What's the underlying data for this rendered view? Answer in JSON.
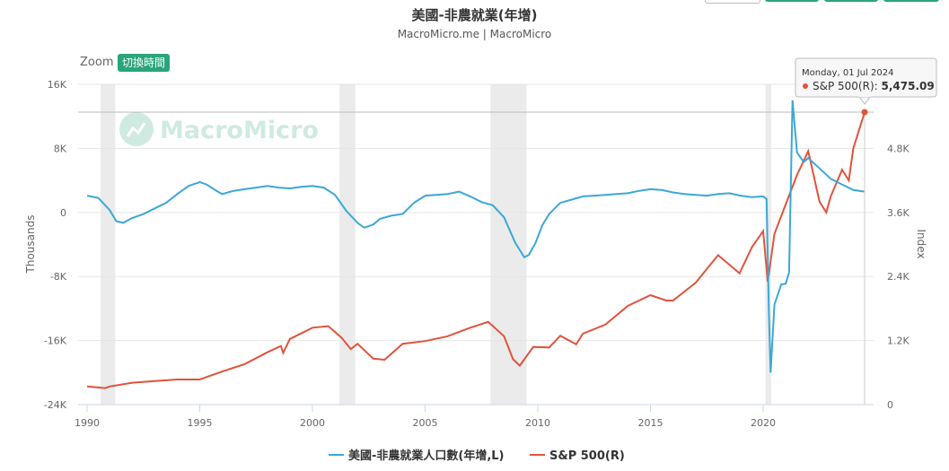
{
  "title": "美國-非農就業(年增)",
  "subtitle": "MacroMicro.me | MacroMicro",
  "zoom_label": "Zoom",
  "zoom_button": "切換時間",
  "watermark": "MacroMicro",
  "tooltip": {
    "date": "Monday, 01 Jul 2024",
    "series": "S&P 500(R): ",
    "value": "5,475.09"
  },
  "colors": {
    "payrolls": "#3aa8d6",
    "sp500": "#e0533c",
    "recession": "#ebebeb",
    "watermark": "#2aa57a",
    "button": "#2aa57a"
  },
  "chart_data": {
    "type": "line",
    "x_range": [
      "1990-01",
      "2024-12"
    ],
    "x_ticks": [
      "1990",
      "1995",
      "2000",
      "2005",
      "2010",
      "2015",
      "2020"
    ],
    "left_axis": {
      "label": "Thousands",
      "ylim": [
        -24000,
        16000
      ],
      "ticks": [
        {
          "v": 16000,
          "t": "16K"
        },
        {
          "v": 8000,
          "t": "8K"
        },
        {
          "v": 0,
          "t": "0"
        },
        {
          "v": -8000,
          "t": "-8K"
        },
        {
          "v": -16000,
          "t": "-16K"
        },
        {
          "v": -24000,
          "t": "-24K"
        }
      ]
    },
    "right_axis": {
      "label": "Index",
      "ylim": [
        0,
        6000
      ],
      "ticks": [
        {
          "v": 4800,
          "t": "4.8K"
        },
        {
          "v": 3600,
          "t": "3.6K"
        },
        {
          "v": 2400,
          "t": "2.4K"
        },
        {
          "v": 1200,
          "t": "1.2K"
        },
        {
          "v": 0,
          "t": "0"
        }
      ]
    },
    "recession_periods": [
      {
        "start": 1990.6,
        "end": 1991.25
      },
      {
        "start": 2001.2,
        "end": 2001.9
      },
      {
        "start": 2007.9,
        "end": 2009.5
      },
      {
        "start": 2020.1,
        "end": 2020.35
      }
    ],
    "series": [
      {
        "name": "美國-非農就業人口數(年增,L)",
        "axis": "left",
        "points": [
          [
            1990.0,
            2100
          ],
          [
            1990.5,
            1800
          ],
          [
            1991.0,
            300
          ],
          [
            1991.3,
            -1100
          ],
          [
            1991.6,
            -1300
          ],
          [
            1992.0,
            -700
          ],
          [
            1992.5,
            -200
          ],
          [
            1993.0,
            500
          ],
          [
            1993.5,
            1200
          ],
          [
            1994.0,
            2300
          ],
          [
            1994.5,
            3300
          ],
          [
            1995.0,
            3800
          ],
          [
            1995.3,
            3500
          ],
          [
            1995.8,
            2600
          ],
          [
            1996.0,
            2300
          ],
          [
            1996.5,
            2700
          ],
          [
            1997.0,
            2900
          ],
          [
            1997.5,
            3100
          ],
          [
            1998.0,
            3300
          ],
          [
            1998.5,
            3100
          ],
          [
            1999.0,
            3000
          ],
          [
            1999.5,
            3200
          ],
          [
            2000.0,
            3300
          ],
          [
            2000.5,
            3100
          ],
          [
            2001.0,
            2200
          ],
          [
            2001.5,
            200
          ],
          [
            2002.0,
            -1300
          ],
          [
            2002.3,
            -1900
          ],
          [
            2002.7,
            -1500
          ],
          [
            2003.0,
            -800
          ],
          [
            2003.5,
            -400
          ],
          [
            2004.0,
            -200
          ],
          [
            2004.5,
            1200
          ],
          [
            2005.0,
            2100
          ],
          [
            2005.5,
            2200
          ],
          [
            2006.0,
            2300
          ],
          [
            2006.5,
            2600
          ],
          [
            2007.0,
            2000
          ],
          [
            2007.5,
            1300
          ],
          [
            2008.0,
            900
          ],
          [
            2008.5,
            -600
          ],
          [
            2009.0,
            -3800
          ],
          [
            2009.4,
            -5600
          ],
          [
            2009.6,
            -5300
          ],
          [
            2009.9,
            -3800
          ],
          [
            2010.2,
            -1600
          ],
          [
            2010.5,
            -200
          ],
          [
            2011.0,
            1200
          ],
          [
            2011.5,
            1600
          ],
          [
            2012.0,
            2000
          ],
          [
            2012.5,
            2100
          ],
          [
            2013.0,
            2200
          ],
          [
            2013.5,
            2300
          ],
          [
            2014.0,
            2400
          ],
          [
            2014.5,
            2700
          ],
          [
            2015.0,
            2900
          ],
          [
            2015.5,
            2800
          ],
          [
            2016.0,
            2500
          ],
          [
            2016.5,
            2300
          ],
          [
            2017.0,
            2200
          ],
          [
            2017.5,
            2100
          ],
          [
            2018.0,
            2300
          ],
          [
            2018.5,
            2400
          ],
          [
            2019.0,
            2100
          ],
          [
            2019.5,
            1900
          ],
          [
            2020.0,
            2000
          ],
          [
            2020.15,
            1700
          ],
          [
            2020.25,
            -12000
          ],
          [
            2020.33,
            -20000
          ],
          [
            2020.5,
            -11500
          ],
          [
            2020.8,
            -9000
          ],
          [
            2021.0,
            -8900
          ],
          [
            2021.15,
            -7500
          ],
          [
            2021.3,
            14000
          ],
          [
            2021.5,
            7500
          ],
          [
            2021.8,
            6300
          ],
          [
            2022.0,
            6800
          ],
          [
            2022.5,
            5500
          ],
          [
            2023.0,
            4200
          ],
          [
            2023.5,
            3500
          ],
          [
            2024.0,
            2800
          ],
          [
            2024.5,
            2600
          ]
        ]
      },
      {
        "name": "S&P 500(R)",
        "axis": "right",
        "points": [
          [
            1990.0,
            340
          ],
          [
            1990.8,
            310
          ],
          [
            1991.0,
            340
          ],
          [
            1992.0,
            410
          ],
          [
            1993.0,
            440
          ],
          [
            1994.0,
            470
          ],
          [
            1995.0,
            470
          ],
          [
            1996.0,
            620
          ],
          [
            1997.0,
            760
          ],
          [
            1998.0,
            980
          ],
          [
            1998.6,
            1100
          ],
          [
            1998.7,
            970
          ],
          [
            1999.0,
            1230
          ],
          [
            2000.0,
            1440
          ],
          [
            2000.7,
            1470
          ],
          [
            2001.3,
            1250
          ],
          [
            2001.7,
            1040
          ],
          [
            2002.0,
            1140
          ],
          [
            2002.7,
            860
          ],
          [
            2003.2,
            840
          ],
          [
            2004.0,
            1140
          ],
          [
            2005.0,
            1190
          ],
          [
            2006.0,
            1280
          ],
          [
            2007.0,
            1440
          ],
          [
            2007.8,
            1550
          ],
          [
            2008.5,
            1280
          ],
          [
            2008.9,
            850
          ],
          [
            2009.2,
            730
          ],
          [
            2009.8,
            1080
          ],
          [
            2010.5,
            1070
          ],
          [
            2011.0,
            1290
          ],
          [
            2011.7,
            1130
          ],
          [
            2012.0,
            1330
          ],
          [
            2013.0,
            1500
          ],
          [
            2014.0,
            1850
          ],
          [
            2015.0,
            2050
          ],
          [
            2015.7,
            1950
          ],
          [
            2016.0,
            1950
          ],
          [
            2017.0,
            2280
          ],
          [
            2018.0,
            2800
          ],
          [
            2018.95,
            2460
          ],
          [
            2019.5,
            2950
          ],
          [
            2020.0,
            3250
          ],
          [
            2020.2,
            2300
          ],
          [
            2020.5,
            3200
          ],
          [
            2021.0,
            3750
          ],
          [
            2021.5,
            4300
          ],
          [
            2022.0,
            4750
          ],
          [
            2022.5,
            3800
          ],
          [
            2022.8,
            3600
          ],
          [
            2023.0,
            3900
          ],
          [
            2023.5,
            4400
          ],
          [
            2023.8,
            4200
          ],
          [
            2024.0,
            4800
          ],
          [
            2024.5,
            5475
          ]
        ]
      }
    ],
    "legend": [
      "美國-非農就業人口數(年增,L)",
      "S&P 500(R)"
    ]
  }
}
